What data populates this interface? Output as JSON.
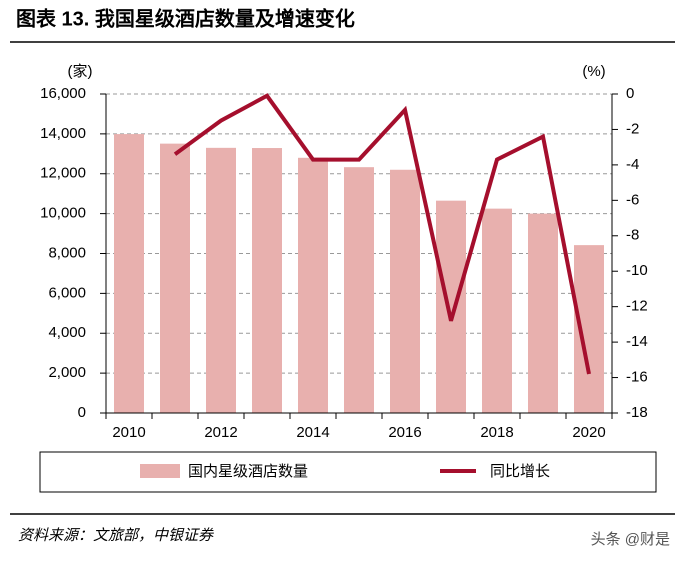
{
  "chart_data": {
    "type": "bar-line",
    "title": "图表 13. 我国星级酒店数量及增速变化",
    "y_unit": "(家)",
    "y2_unit": "(%)",
    "categories": [
      "2010",
      null,
      "2012",
      null,
      "2014",
      null,
      "2016",
      null,
      "2018",
      null,
      "2020"
    ],
    "series": [
      {
        "name": "国内星级酒店数量",
        "color": "#e8b0ae",
        "values": [
          13990,
          13510,
          13300,
          13290,
          12800,
          12330,
          12200,
          10650,
          10250,
          10000,
          8420
        ]
      },
      {
        "name": "同比增长",
        "color": "#a50f2d",
        "axis": "y2",
        "values": [
          null,
          -3.4,
          -1.5,
          -0.1,
          -3.7,
          -3.7,
          -0.9,
          -12.8,
          -3.7,
          -2.4,
          -15.8
        ]
      }
    ],
    "ylim": [
      0,
      16000
    ],
    "yticks": [
      0,
      {
        "value": 2000,
        "label": "2,000"
      },
      {
        "value": 4000,
        "label": "4,000"
      },
      {
        "value": 6000,
        "label": "6,000"
      },
      {
        "value": 8000,
        "label": "8,000"
      },
      {
        "value": 10000,
        "label": "10,000"
      },
      {
        "value": 12000,
        "label": "12,000"
      },
      {
        "value": 14000,
        "label": "14,000"
      },
      {
        "value": 16000,
        "label": "16,000"
      }
    ],
    "y2lim": [
      -18,
      0
    ],
    "y2ticks": [
      0,
      -2,
      -4,
      -6,
      -8,
      -10,
      -12,
      -14,
      -16,
      -18
    ],
    "grid": true,
    "source": "资料来源：文旅部，中银证券",
    "watermark": "头条 @财是"
  }
}
